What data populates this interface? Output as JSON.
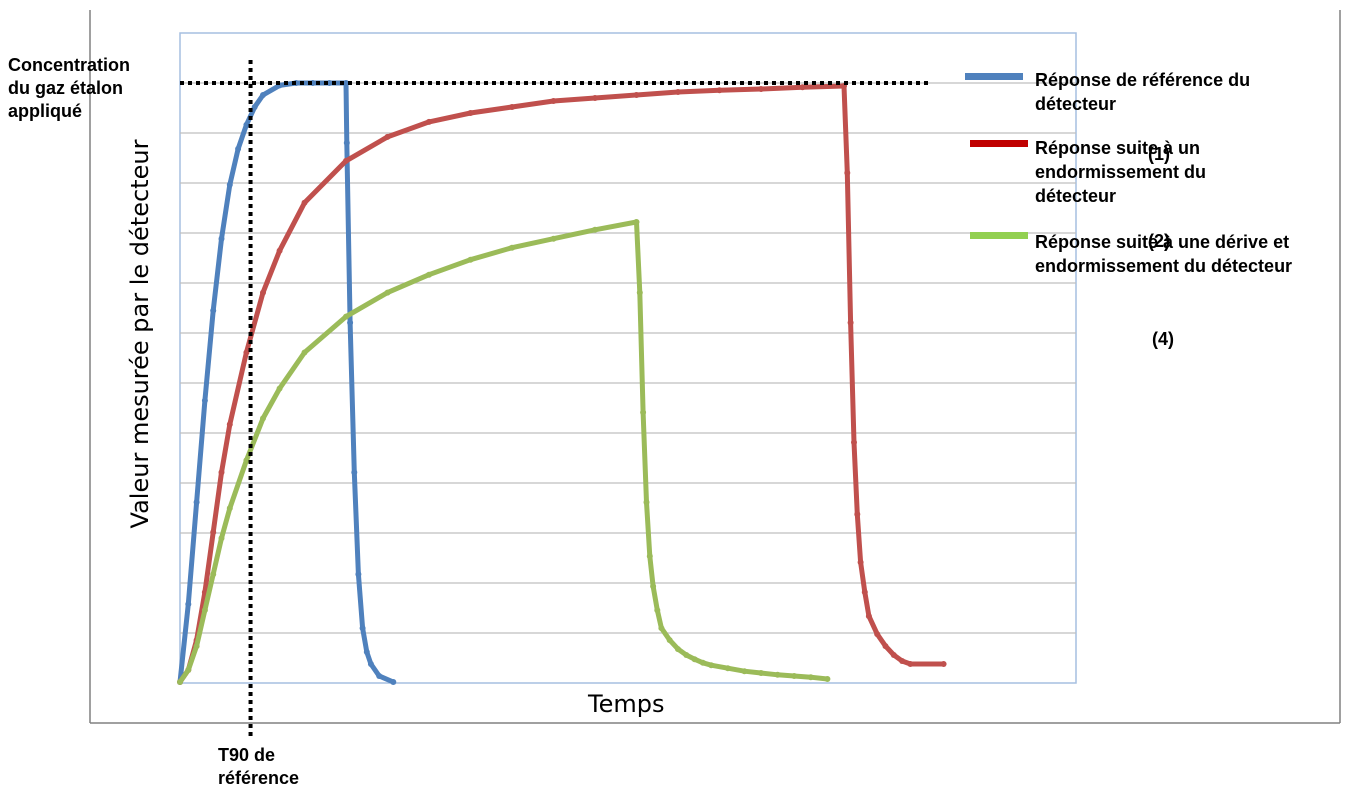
{
  "chart_data": {
    "type": "line",
    "xlabel": "Temps",
    "ylabel": "Valeur mesurée par le détecteur",
    "grid": true,
    "legend_position": "right",
    "xlim": [
      0,
      100
    ],
    "ylim": [
      0,
      100
    ],
    "reference_concentration": {
      "label": "Concentration\ndu gaz étalon\nappliqué",
      "y": 100
    },
    "t90_reference": {
      "label": "T90 de\nréférence",
      "x": 8.5
    },
    "series": [
      {
        "name": "Réponse de référence du détecteur",
        "color": "#4f81bd",
        "x": [
          0,
          1,
          2,
          3,
          4,
          5,
          6,
          7,
          8,
          9,
          10,
          12,
          14,
          16,
          18,
          20,
          20.1,
          20.5,
          21,
          21.5,
          22,
          22.5,
          23,
          24,
          25.7
        ],
        "y": [
          0,
          13,
          30,
          47,
          62,
          74,
          83,
          89,
          93,
          96,
          98,
          99.6,
          100,
          100,
          100,
          100,
          90,
          60,
          35,
          18,
          9,
          5,
          3,
          1,
          0
        ]
      },
      {
        "name": "Réponse suite à un endormissement du détecteur",
        "color": "#c0504d",
        "x": [
          0,
          1,
          2,
          3,
          4,
          5,
          6,
          8,
          10,
          12,
          15,
          20,
          25,
          30,
          35,
          40,
          45,
          50,
          55,
          60,
          65,
          70,
          75,
          80,
          80.4,
          80.8,
          81.2,
          81.6,
          82,
          82.5,
          83,
          84,
          85,
          86,
          87,
          88,
          92
        ],
        "y": [
          0,
          2,
          7,
          15,
          25,
          35,
          43,
          55,
          65,
          72,
          80,
          87,
          91,
          93.5,
          95,
          96,
          97,
          97.5,
          98,
          98.5,
          98.8,
          99,
          99.3,
          99.5,
          85,
          60,
          40,
          28,
          20,
          15,
          11,
          8,
          6,
          4.5,
          3.5,
          3,
          3
        ]
      },
      {
        "name": "Réponse suite à une dérive et endormissement du détecteur",
        "color": "#9bbb59",
        "x": [
          0,
          1,
          2,
          3,
          4,
          5,
          6,
          8,
          10,
          12,
          15,
          20,
          25,
          30,
          35,
          40,
          45,
          50,
          55,
          55.4,
          55.8,
          56.2,
          56.6,
          57,
          57.5,
          58,
          59,
          60,
          61,
          62,
          63,
          64,
          66,
          68,
          70,
          72,
          74,
          76,
          78
        ],
        "y": [
          0,
          2,
          6,
          12,
          18,
          24,
          29,
          37,
          44,
          49,
          55,
          61,
          65,
          68,
          70.5,
          72.5,
          74,
          75.5,
          76.8,
          65,
          45,
          30,
          21,
          16,
          12,
          9,
          7,
          5.5,
          4.5,
          3.8,
          3.2,
          2.8,
          2.3,
          1.8,
          1.5,
          1.2,
          1,
          0.8,
          0.5
        ]
      }
    ],
    "annotations": [
      "(1)",
      "(2)",
      "(4)"
    ]
  }
}
